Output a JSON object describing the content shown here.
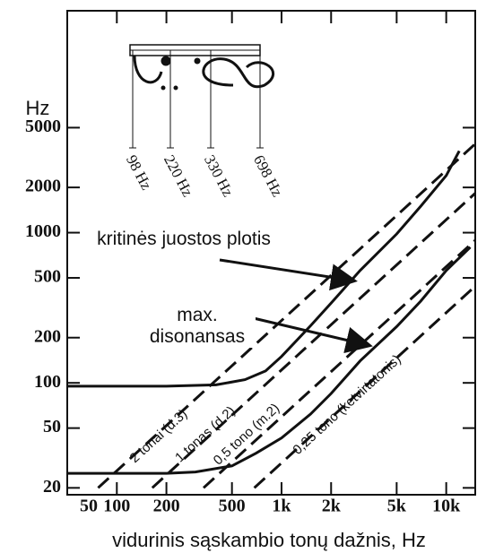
{
  "chart_data": {
    "type": "line",
    "y_label": "Hz",
    "x_label": "vidurinis sąskambio tonų dažnis, Hz",
    "log_x": true,
    "log_y": true,
    "xlim": [
      50,
      15000
    ],
    "ylim": [
      18,
      30000
    ],
    "xticks": [
      50,
      100,
      200,
      500,
      {
        "value": 1000,
        "label": "1k"
      },
      {
        "value": 2000,
        "label": "2k"
      },
      {
        "value": 5000,
        "label": "5k"
      },
      {
        "value": 10000,
        "label": "10k"
      }
    ],
    "yticks": [
      20,
      50,
      100,
      200,
      500,
      1000,
      2000,
      5000
    ],
    "series": [
      {
        "name": "kritinės juostos plotis",
        "color": "#111111",
        "dash": false,
        "x": [
          50,
          100,
          200,
          400,
          600,
          800,
          1000,
          1500,
          2000,
          3000,
          5000,
          7000,
          10000,
          12000
        ],
        "values": [
          95,
          95,
          95,
          97,
          105,
          120,
          150,
          240,
          340,
          560,
          980,
          1500,
          2400,
          3500
        ]
      },
      {
        "name": "max. disonansas",
        "color": "#111111",
        "dash": false,
        "x": [
          50,
          100,
          200,
          300,
          500,
          700,
          1000,
          1500,
          2000,
          3000,
          5000,
          7000,
          10000,
          14000
        ],
        "values": [
          25,
          25,
          25,
          25.5,
          28,
          34,
          43,
          62,
          85,
          140,
          237,
          350,
          560,
          800
        ]
      },
      {
        "name": "2 tonai (d.3)",
        "color": "#111111",
        "dash": true,
        "x": [
          77,
          15000
        ],
        "values": [
          20,
          3900
        ]
      },
      {
        "name": "1 tonas (d.2)",
        "color": "#111111",
        "dash": true,
        "x": [
          164,
          15000
        ],
        "values": [
          20,
          1830
        ]
      },
      {
        "name": "0,5 tono (m.2)",
        "color": "#111111",
        "dash": true,
        "x": [
          336,
          15000
        ],
        "values": [
          20,
          890
        ]
      },
      {
        "name": "0,25 tono (ketvirtatonis)",
        "color": "#111111",
        "dash": true,
        "x": [
          683,
          15000
        ],
        "values": [
          20,
          440
        ]
      }
    ],
    "staff_labels": [
      "98 Hz",
      "220 Hz",
      "330 Hz",
      "698 Hz"
    ]
  }
}
